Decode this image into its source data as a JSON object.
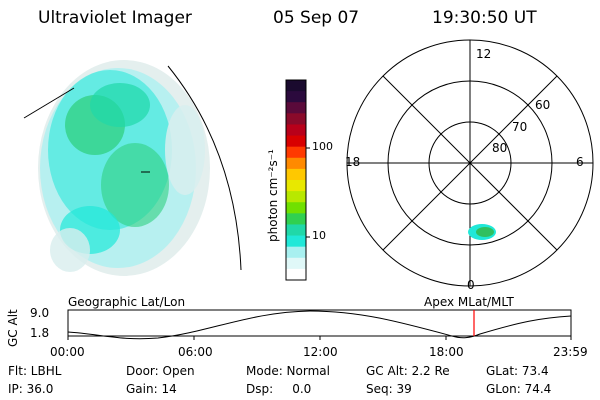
{
  "header": {
    "instrument": "Ultraviolet Imager",
    "date": "05 Sep 07",
    "time": "19:30:50 UT"
  },
  "colorbar": {
    "unit_label": "photon cm⁻²s⁻¹",
    "ticks": [
      "100",
      "10"
    ],
    "colors": [
      "#1a0a2e",
      "#2b0a3d",
      "#5a0a3a",
      "#8a0a2a",
      "#b8001a",
      "#d80000",
      "#ff3a00",
      "#ff8a00",
      "#ffc800",
      "#e8e800",
      "#b8e800",
      "#70e000",
      "#30d050",
      "#20d8a8",
      "#20e8d8",
      "#a8f0f0",
      "#e0f8f8",
      "#ffffff"
    ]
  },
  "polar_plot": {
    "mlt_labels": {
      "top": "12",
      "left": "18",
      "right": "6",
      "bottom": "0"
    },
    "lat_labels": [
      "60",
      "70",
      "80"
    ]
  },
  "altitude_plot": {
    "left_title": "Geographic Lat/Lon",
    "right_title": "Apex MLat/MLT",
    "y_label": "GC Alt",
    "y_ticks": [
      "9.0",
      "1.8"
    ],
    "x_ticks": [
      "00:00",
      "06:00",
      "12:00",
      "18:00",
      "23:59"
    ]
  },
  "info": {
    "filter": "Flt: LBHL",
    "door": "Door: Open",
    "mode": "Mode: Normal",
    "gc_alt": "GC Alt: 2.2 Re",
    "glat": "GLat: 73.4",
    "ip": "IP: 36.0",
    "gain": "Gain: 14",
    "dsp": "Dsp:     0.0",
    "seq": "Seq: 39",
    "glon": "GLon: 74.4"
  }
}
